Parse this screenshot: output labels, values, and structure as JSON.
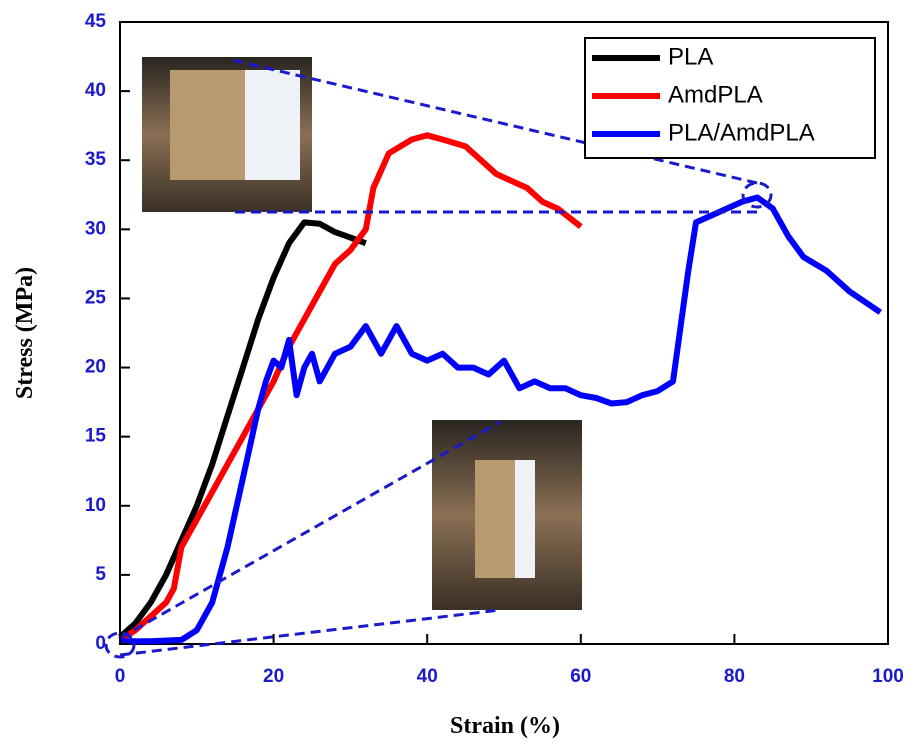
{
  "chart_data": {
    "type": "line",
    "x_label": "Strain (%)",
    "y_label": "Stress (MPa)",
    "xlim": [
      0,
      100
    ],
    "xticks": [
      0,
      20,
      40,
      60,
      80,
      100
    ],
    "ylim": [
      0,
      45
    ],
    "yticks": [
      0,
      5,
      10,
      15,
      20,
      25,
      30,
      35,
      40,
      45
    ],
    "legend": "upper right",
    "series": [
      {
        "name": "PLA",
        "color": "#000000",
        "x": [
          0,
          2,
          4,
          6,
          8,
          10,
          12,
          14,
          16,
          18,
          20,
          22,
          24,
          26,
          28,
          30,
          32
        ],
        "values": [
          0.5,
          1.5,
          3,
          5,
          7.5,
          10,
          13,
          16.5,
          20,
          23.5,
          26.5,
          29,
          30.5,
          30.4,
          29.8,
          29.4,
          29
        ]
      },
      {
        "name": "AmdPLA",
        "color": "#ff0000",
        "x": [
          0,
          2,
          4,
          6,
          7,
          8,
          10,
          12,
          14,
          16,
          18,
          20,
          22,
          24,
          26,
          28,
          30,
          32,
          33,
          35,
          38,
          40,
          42,
          45,
          47,
          49,
          51,
          53,
          55,
          57,
          60
        ],
        "values": [
          0.3,
          1,
          2,
          3,
          4,
          7,
          9,
          11,
          13,
          15,
          17,
          19,
          21.5,
          23.5,
          25.5,
          27.5,
          28.5,
          30,
          33,
          35.5,
          36.5,
          36.8,
          36.5,
          36,
          35,
          34,
          33.5,
          33,
          32,
          31.5,
          30.2
        ]
      },
      {
        "name": "PLA/AmdPLA",
        "color": "#0000ff",
        "x": [
          0,
          4,
          8,
          10,
          12,
          14,
          16,
          18,
          19,
          20,
          21,
          22,
          23,
          24,
          25,
          26,
          28,
          30,
          32,
          34,
          36,
          38,
          40,
          42,
          44,
          46,
          48,
          50,
          52,
          54,
          56,
          58,
          60,
          62,
          64,
          66,
          68,
          70,
          72,
          74,
          75,
          77,
          79,
          81,
          83,
          85,
          87,
          89,
          92,
          95,
          99
        ],
        "values": [
          0.2,
          0.2,
          0.3,
          1,
          3,
          7,
          12,
          17,
          19,
          20.5,
          20,
          22,
          18,
          20,
          21,
          19,
          21,
          21.5,
          23,
          21,
          23,
          21,
          20.5,
          21,
          20,
          20,
          19.5,
          20.5,
          18.5,
          19,
          18.5,
          18.5,
          18,
          17.8,
          17.4,
          17.5,
          18,
          18.3,
          19,
          27,
          30.5,
          31,
          31.5,
          32,
          32.3,
          31.5,
          29.5,
          28,
          27,
          25.5,
          24
        ]
      }
    ]
  }
}
